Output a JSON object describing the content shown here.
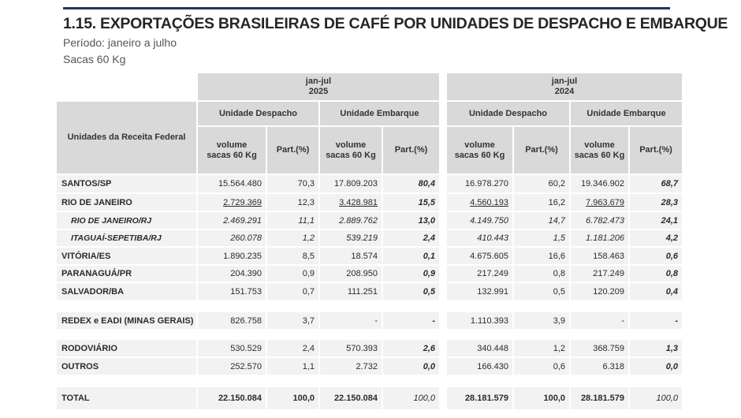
{
  "title": "1.15. EXPORTAÇÕES BRASILEIRAS DE CAFÉ POR UNIDADES DE DESPACHO E EMBARQUE",
  "subtitle_period": "Período: janeiro a julho",
  "subtitle_unit": "Sacas 60 Kg",
  "table": {
    "row_header": "Unidades da Receita Federal",
    "period_2025": "jan-jul\n2025",
    "period_2024": "jan-jul\n2024",
    "unidade_despacho": "Unidade Despacho",
    "unidade_embarque": "Unidade Embarque",
    "col_volume": "volume\nsacas 60 Kg",
    "col_part": "Part.(%)",
    "rows": [
      {
        "label": "SANTOS/SP",
        "v": [
          "15.564.480",
          "70,3",
          "17.809.203",
          "80,4",
          "16.978.270",
          "60,2",
          "19.346.902",
          "68,7"
        ]
      },
      {
        "label": "RIO DE JANEIRO",
        "v": [
          "2.729.369",
          "12,3",
          "3.428.981",
          "15,5",
          "4.560.193",
          "16,2",
          "7.963.679",
          "28,3"
        ]
      },
      {
        "label": "RIO DE JANEIRO/RJ",
        "v": [
          "2.469.291",
          "11,1",
          "2.889.762",
          "13,0",
          "4.149.750",
          "14,7",
          "6.782.473",
          "24,1"
        ]
      },
      {
        "label": "ITAGUAÍ-SEPETIBA/RJ",
        "v": [
          "260.078",
          "1,2",
          "539.219",
          "2,4",
          "410.443",
          "1,5",
          "1.181.206",
          "4,2"
        ]
      },
      {
        "label": "VITÓRIA/ES",
        "v": [
          "1.890.235",
          "8,5",
          "18.574",
          "0,1",
          "4.675.605",
          "16,6",
          "158.463",
          "0,6"
        ]
      },
      {
        "label": "PARANAGUÁ/PR",
        "v": [
          "204.390",
          "0,9",
          "208.950",
          "0,9",
          "217.249",
          "0,8",
          "217.249",
          "0,8"
        ]
      },
      {
        "label": "SALVADOR/BA",
        "v": [
          "151.753",
          "0,7",
          "111.251",
          "0,5",
          "132.991",
          "0,5",
          "120.209",
          "0,4"
        ]
      },
      {
        "label": "REDEX e EADI (MINAS GERAIS)",
        "v": [
          "826.758",
          "3,7",
          "-",
          "-",
          "1.110.393",
          "3,9",
          "-",
          "-"
        ]
      },
      {
        "label": "RODOVIÁRIO",
        "v": [
          "530.529",
          "2,4",
          "570.393",
          "2,6",
          "340.448",
          "1,2",
          "368.759",
          "1,3"
        ]
      },
      {
        "label": "OUTROS",
        "v": [
          "252.570",
          "1,1",
          "2.732",
          "0,0",
          "166.430",
          "0,6",
          "6.318",
          "0,0"
        ]
      },
      {
        "label": "TOTAL",
        "v": [
          "22.150.084",
          "100,0",
          "22.150.084",
          "100,0",
          "28.181.579",
          "100,0",
          "28.181.579",
          "100,0"
        ]
      }
    ]
  }
}
